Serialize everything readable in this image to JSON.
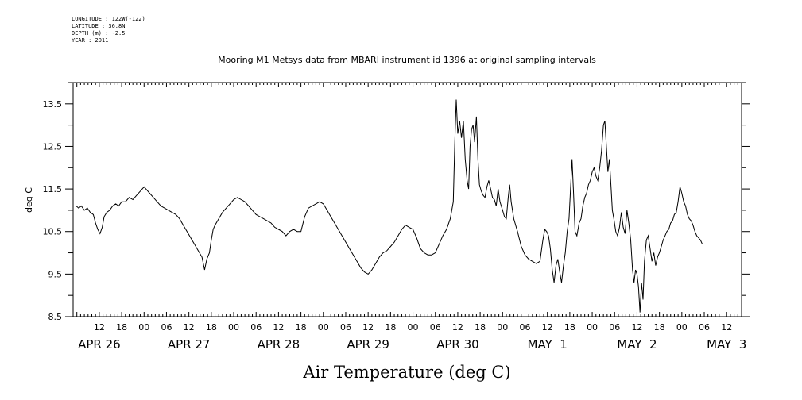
{
  "header": {
    "longitude": "LONGITUDE : 122W(-122)",
    "latitude": "LATITUDE : 36.8N",
    "depth": "DEPTH (m) : -2.5",
    "year": "YEAR : 2011"
  },
  "chart_data": {
    "type": "line",
    "title": "Mooring M1 Metsys data from MBARI instrument id 1396 at original sampling intervals",
    "xlabel": "Air Temperature (deg C)",
    "ylabel": "deg C",
    "ylim": [
      8.5,
      14.0
    ],
    "yticks": [
      8.5,
      9.5,
      10.5,
      11.5,
      12.5,
      13.5
    ],
    "ytick_labels": [
      "8.5",
      "9.5",
      "10.5",
      "11.5",
      "12.5",
      "13.5"
    ],
    "xlim_hours": [
      5,
      184
    ],
    "x_unit": "hours from 2011-04-25 00:00",
    "hour_ticks": [
      {
        "h": 12,
        "label": "12"
      },
      {
        "h": 18,
        "label": "18"
      },
      {
        "h": 24,
        "label": "00"
      },
      {
        "h": 30,
        "label": "06"
      },
      {
        "h": 36,
        "label": "12"
      },
      {
        "h": 42,
        "label": "18"
      },
      {
        "h": 48,
        "label": "00"
      },
      {
        "h": 54,
        "label": "06"
      },
      {
        "h": 60,
        "label": "12"
      },
      {
        "h": 66,
        "label": "18"
      },
      {
        "h": 72,
        "label": "00"
      },
      {
        "h": 78,
        "label": "06"
      },
      {
        "h": 84,
        "label": "12"
      },
      {
        "h": 90,
        "label": "18"
      },
      {
        "h": 96,
        "label": "00"
      },
      {
        "h": 102,
        "label": "06"
      },
      {
        "h": 108,
        "label": "12"
      },
      {
        "h": 114,
        "label": "18"
      },
      {
        "h": 120,
        "label": "00"
      },
      {
        "h": 126,
        "label": "06"
      },
      {
        "h": 132,
        "label": "12"
      },
      {
        "h": 138,
        "label": "18"
      },
      {
        "h": 144,
        "label": "00"
      },
      {
        "h": 150,
        "label": "06"
      },
      {
        "h": 156,
        "label": "12"
      },
      {
        "h": 162,
        "label": "18"
      },
      {
        "h": 168,
        "label": "00"
      },
      {
        "h": 174,
        "label": "06"
      },
      {
        "h": 180,
        "label": "12"
      }
    ],
    "date_ticks": [
      {
        "h": 12,
        "label": "APR 26"
      },
      {
        "h": 36,
        "label": "APR 27"
      },
      {
        "h": 60,
        "label": "APR 28"
      },
      {
        "h": 84,
        "label": "APR 29"
      },
      {
        "h": 108,
        "label": "APR 30"
      },
      {
        "h": 132,
        "label": "MAY  1"
      },
      {
        "h": 156,
        "label": "MAY  2"
      },
      {
        "h": 180,
        "label": "MAY  3"
      }
    ],
    "series": [
      {
        "color": "#000000",
        "points": [
          [
            5.8,
            11.1
          ],
          [
            6.5,
            11.05
          ],
          [
            7.2,
            11.1
          ],
          [
            8.0,
            11.0
          ],
          [
            8.8,
            11.05
          ],
          [
            9.6,
            10.95
          ],
          [
            10.4,
            10.9
          ],
          [
            11.0,
            10.7
          ],
          [
            11.6,
            10.55
          ],
          [
            12.2,
            10.45
          ],
          [
            12.8,
            10.6
          ],
          [
            13.3,
            10.85
          ],
          [
            14.0,
            10.95
          ],
          [
            14.8,
            11.0
          ],
          [
            15.6,
            11.1
          ],
          [
            16.4,
            11.15
          ],
          [
            17.2,
            11.1
          ],
          [
            18.0,
            11.2
          ],
          [
            19.0,
            11.2
          ],
          [
            20.0,
            11.3
          ],
          [
            21.0,
            11.25
          ],
          [
            22.0,
            11.35
          ],
          [
            23.0,
            11.45
          ],
          [
            24.0,
            11.55
          ],
          [
            24.5,
            11.5
          ],
          [
            25.5,
            11.4
          ],
          [
            26.5,
            11.3
          ],
          [
            27.5,
            11.2
          ],
          [
            28.5,
            11.1
          ],
          [
            29.5,
            11.05
          ],
          [
            30.5,
            11.0
          ],
          [
            31.5,
            10.95
          ],
          [
            32.5,
            10.9
          ],
          [
            33.5,
            10.8
          ],
          [
            34.5,
            10.65
          ],
          [
            35.5,
            10.5
          ],
          [
            36.5,
            10.35
          ],
          [
            37.5,
            10.2
          ],
          [
            38.5,
            10.05
          ],
          [
            39.5,
            9.9
          ],
          [
            40.2,
            9.6
          ],
          [
            40.8,
            9.85
          ],
          [
            41.5,
            10.0
          ],
          [
            42.0,
            10.3
          ],
          [
            42.5,
            10.55
          ],
          [
            43.0,
            10.65
          ],
          [
            44.0,
            10.8
          ],
          [
            45.0,
            10.95
          ],
          [
            46.0,
            11.05
          ],
          [
            47.0,
            11.15
          ],
          [
            48.0,
            11.25
          ],
          [
            49.0,
            11.3
          ],
          [
            50.0,
            11.25
          ],
          [
            51.0,
            11.2
          ],
          [
            52.0,
            11.1
          ],
          [
            53.0,
            11.0
          ],
          [
            54.0,
            10.9
          ],
          [
            55.0,
            10.85
          ],
          [
            56.0,
            10.8
          ],
          [
            57.0,
            10.75
          ],
          [
            58.0,
            10.7
          ],
          [
            59.0,
            10.6
          ],
          [
            60.0,
            10.55
          ],
          [
            61.0,
            10.5
          ],
          [
            62.0,
            10.4
          ],
          [
            63.0,
            10.5
          ],
          [
            64.0,
            10.55
          ],
          [
            65.0,
            10.5
          ],
          [
            66.0,
            10.5
          ],
          [
            67.0,
            10.85
          ],
          [
            68.0,
            11.05
          ],
          [
            69.0,
            11.1
          ],
          [
            70.0,
            11.15
          ],
          [
            71.0,
            11.2
          ],
          [
            72.0,
            11.15
          ],
          [
            73.0,
            11.0
          ],
          [
            74.0,
            10.85
          ],
          [
            75.0,
            10.7
          ],
          [
            76.0,
            10.55
          ],
          [
            77.0,
            10.4
          ],
          [
            78.0,
            10.25
          ],
          [
            79.0,
            10.1
          ],
          [
            80.0,
            9.95
          ],
          [
            81.0,
            9.8
          ],
          [
            82.0,
            9.65
          ],
          [
            83.0,
            9.55
          ],
          [
            84.0,
            9.5
          ],
          [
            85.0,
            9.6
          ],
          [
            86.0,
            9.75
          ],
          [
            87.0,
            9.9
          ],
          [
            88.0,
            10.0
          ],
          [
            89.0,
            10.05
          ],
          [
            90.0,
            10.15
          ],
          [
            91.0,
            10.25
          ],
          [
            92.0,
            10.4
          ],
          [
            93.0,
            10.55
          ],
          [
            94.0,
            10.65
          ],
          [
            95.0,
            10.6
          ],
          [
            96.0,
            10.55
          ],
          [
            97.0,
            10.35
          ],
          [
            98.0,
            10.1
          ],
          [
            99.0,
            10.0
          ],
          [
            100.0,
            9.95
          ],
          [
            101.0,
            9.95
          ],
          [
            102.0,
            10.0
          ],
          [
            103.0,
            10.2
          ],
          [
            104.0,
            10.4
          ],
          [
            105.0,
            10.55
          ],
          [
            106.0,
            10.8
          ],
          [
            106.8,
            11.2
          ],
          [
            107.2,
            12.6
          ],
          [
            107.6,
            13.6
          ],
          [
            108.0,
            12.8
          ],
          [
            108.5,
            13.1
          ],
          [
            109.0,
            12.7
          ],
          [
            109.5,
            13.1
          ],
          [
            110.0,
            12.2
          ],
          [
            110.5,
            11.7
          ],
          [
            110.9,
            11.5
          ],
          [
            111.3,
            12.5
          ],
          [
            111.7,
            12.9
          ],
          [
            112.1,
            13.0
          ],
          [
            112.5,
            12.6
          ],
          [
            113.0,
            13.2
          ],
          [
            113.4,
            12.2
          ],
          [
            113.8,
            11.6
          ],
          [
            114.3,
            11.45
          ],
          [
            114.8,
            11.35
          ],
          [
            115.3,
            11.3
          ],
          [
            115.8,
            11.55
          ],
          [
            116.3,
            11.7
          ],
          [
            116.8,
            11.5
          ],
          [
            117.3,
            11.3
          ],
          [
            117.8,
            11.25
          ],
          [
            118.3,
            11.1
          ],
          [
            118.8,
            11.5
          ],
          [
            119.3,
            11.2
          ],
          [
            120.0,
            11.0
          ],
          [
            120.5,
            10.85
          ],
          [
            121.0,
            10.8
          ],
          [
            121.5,
            11.3
          ],
          [
            121.9,
            11.6
          ],
          [
            122.3,
            11.2
          ],
          [
            123.0,
            10.8
          ],
          [
            124.0,
            10.5
          ],
          [
            125.0,
            10.15
          ],
          [
            126.0,
            9.95
          ],
          [
            127.0,
            9.85
          ],
          [
            128.0,
            9.8
          ],
          [
            129.0,
            9.75
          ],
          [
            130.0,
            9.8
          ],
          [
            130.8,
            10.3
          ],
          [
            131.3,
            10.55
          ],
          [
            131.8,
            10.5
          ],
          [
            132.3,
            10.4
          ],
          [
            132.8,
            10.1
          ],
          [
            133.3,
            9.6
          ],
          [
            133.8,
            9.3
          ],
          [
            134.3,
            9.7
          ],
          [
            134.8,
            9.85
          ],
          [
            135.3,
            9.55
          ],
          [
            135.8,
            9.3
          ],
          [
            136.3,
            9.7
          ],
          [
            136.8,
            10.0
          ],
          [
            137.3,
            10.5
          ],
          [
            137.8,
            10.8
          ],
          [
            138.2,
            11.5
          ],
          [
            138.6,
            12.2
          ],
          [
            139.0,
            11.4
          ],
          [
            139.4,
            10.5
          ],
          [
            139.9,
            10.4
          ],
          [
            140.5,
            10.7
          ],
          [
            141.0,
            10.8
          ],
          [
            141.5,
            11.1
          ],
          [
            142.0,
            11.3
          ],
          [
            142.5,
            11.4
          ],
          [
            143.0,
            11.6
          ],
          [
            143.5,
            11.7
          ],
          [
            144.0,
            11.9
          ],
          [
            144.5,
            12.0
          ],
          [
            145.0,
            11.8
          ],
          [
            145.5,
            11.7
          ],
          [
            146.0,
            12.0
          ],
          [
            146.5,
            12.4
          ],
          [
            147.0,
            13.0
          ],
          [
            147.4,
            13.1
          ],
          [
            147.8,
            12.5
          ],
          [
            148.2,
            11.9
          ],
          [
            148.6,
            12.2
          ],
          [
            149.0,
            11.6
          ],
          [
            149.4,
            11.0
          ],
          [
            149.8,
            10.8
          ],
          [
            150.3,
            10.5
          ],
          [
            150.8,
            10.4
          ],
          [
            151.3,
            10.6
          ],
          [
            151.8,
            10.95
          ],
          [
            152.3,
            10.6
          ],
          [
            152.8,
            10.45
          ],
          [
            153.3,
            11.0
          ],
          [
            153.8,
            10.7
          ],
          [
            154.3,
            10.3
          ],
          [
            154.8,
            9.6
          ],
          [
            155.2,
            9.3
          ],
          [
            155.6,
            9.6
          ],
          [
            156.0,
            9.5
          ],
          [
            156.4,
            9.2
          ],
          [
            156.8,
            8.6
          ],
          [
            157.2,
            9.3
          ],
          [
            157.6,
            8.9
          ],
          [
            158.0,
            9.8
          ],
          [
            158.5,
            10.3
          ],
          [
            159.0,
            10.4
          ],
          [
            159.5,
            10.1
          ],
          [
            160.0,
            9.8
          ],
          [
            160.5,
            10.0
          ],
          [
            161.0,
            9.7
          ],
          [
            161.5,
            9.9
          ],
          [
            162.0,
            10.0
          ],
          [
            162.5,
            10.15
          ],
          [
            163.0,
            10.3
          ],
          [
            163.5,
            10.4
          ],
          [
            164.0,
            10.5
          ],
          [
            164.5,
            10.55
          ],
          [
            165.0,
            10.7
          ],
          [
            165.5,
            10.75
          ],
          [
            166.0,
            10.9
          ],
          [
            166.5,
            10.95
          ],
          [
            167.0,
            11.2
          ],
          [
            167.5,
            11.55
          ],
          [
            168.0,
            11.4
          ],
          [
            168.5,
            11.2
          ],
          [
            169.0,
            11.1
          ],
          [
            169.5,
            10.9
          ],
          [
            170.0,
            10.8
          ],
          [
            170.5,
            10.75
          ],
          [
            171.0,
            10.65
          ],
          [
            171.5,
            10.5
          ],
          [
            172.0,
            10.4
          ],
          [
            172.5,
            10.35
          ],
          [
            173.0,
            10.3
          ],
          [
            173.5,
            10.2
          ]
        ]
      }
    ]
  }
}
